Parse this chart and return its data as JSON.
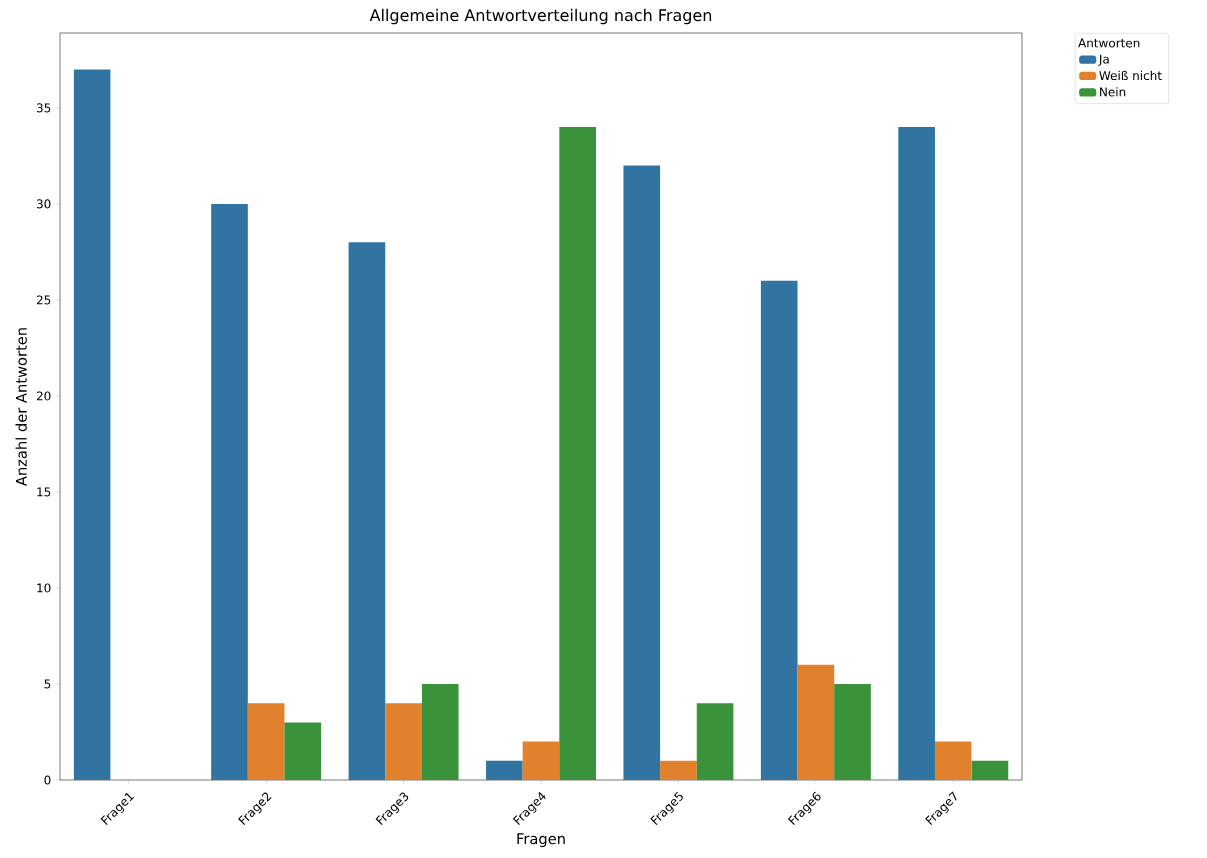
{
  "chart_data": {
    "type": "bar",
    "title": "Allgemeine Antwortverteilung nach Fragen",
    "xlabel": "Fragen",
    "ylabel": "Anzahl der Antworten",
    "legend_title": "Antworten",
    "categories": [
      "Frage1",
      "Frage2",
      "Frage3",
      "Frage4",
      "Frage5",
      "Frage6",
      "Frage7"
    ],
    "series": [
      {
        "name": "Ja",
        "color": "#3274a1",
        "values": [
          37,
          30,
          28,
          1,
          32,
          26,
          34
        ]
      },
      {
        "name": "Weiß nicht",
        "color": "#e1812c",
        "values": [
          0,
          4,
          4,
          2,
          1,
          6,
          2
        ]
      },
      {
        "name": "Nein",
        "color": "#3a923a",
        "values": [
          0,
          3,
          5,
          34,
          4,
          5,
          1
        ]
      }
    ],
    "ylim": [
      0,
      38.9
    ],
    "yticks": [
      0,
      5,
      10,
      15,
      20,
      25,
      30,
      35
    ],
    "grid": false,
    "legend": "top right"
  }
}
